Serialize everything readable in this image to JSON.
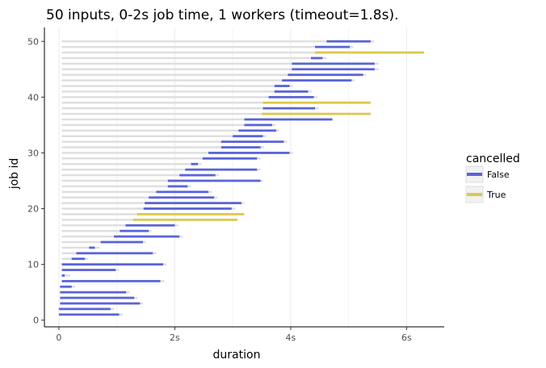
{
  "chart_data": {
    "type": "bar",
    "orientation": "horizontal-segments",
    "title": "50 inputs, 0-2s job time, 1 workers (timeout=1.8s).",
    "xlabel": "duration",
    "ylabel": "job id",
    "x_range": [
      -0.25,
      6.65
    ],
    "y_range": [
      -1.2,
      52.5
    ],
    "x_ticks": [
      0,
      2,
      4,
      6
    ],
    "x_tick_labels": [
      "0",
      "2s",
      "4s",
      "6s"
    ],
    "y_ticks": [
      0,
      10,
      20,
      30,
      40,
      50
    ],
    "y_tick_labels": [
      "0",
      "10",
      "20",
      "30",
      "40",
      "50"
    ],
    "grid": true,
    "legend": {
      "title": "cancelled",
      "placement": "right",
      "entries": [
        {
          "label": "False",
          "color": "#5a64d8"
        },
        {
          "label": "True",
          "color": "#dcc94a"
        }
      ]
    },
    "colors": {
      "false": "#5a64d8",
      "true": "#dcc94a",
      "background_segment": "#dedede",
      "grid": "#ebebeb"
    },
    "jobs": [
      {
        "id": 1,
        "start": 0.0,
        "end": 1.04,
        "submitted": 0.05,
        "queued_end": 1.1,
        "cancelled": false
      },
      {
        "id": 2,
        "start": 0.0,
        "end": 0.89,
        "submitted": 0.05,
        "queued_end": 0.95,
        "cancelled": false
      },
      {
        "id": 3,
        "start": 0.02,
        "end": 1.4,
        "submitted": 0.05,
        "queued_end": 1.45,
        "cancelled": false
      },
      {
        "id": 4,
        "start": 0.02,
        "end": 1.3,
        "submitted": 0.05,
        "queued_end": 1.36,
        "cancelled": false
      },
      {
        "id": 5,
        "start": 0.02,
        "end": 1.16,
        "submitted": 0.05,
        "queued_end": 1.22,
        "cancelled": false
      },
      {
        "id": 6,
        "start": 0.02,
        "end": 0.22,
        "submitted": 0.05,
        "queued_end": 0.28,
        "cancelled": false
      },
      {
        "id": 7,
        "start": 0.05,
        "end": 1.75,
        "submitted": 0.05,
        "queued_end": 1.82,
        "cancelled": false
      },
      {
        "id": 8,
        "start": 0.05,
        "end": 0.1,
        "submitted": 0.05,
        "queued_end": 0.2,
        "cancelled": false
      },
      {
        "id": 9,
        "start": 0.05,
        "end": 0.98,
        "submitted": 0.05,
        "queued_end": 1.04,
        "cancelled": false
      },
      {
        "id": 10,
        "start": 0.05,
        "end": 1.8,
        "submitted": 0.05,
        "queued_end": 1.86,
        "cancelled": false
      },
      {
        "id": 11,
        "start": 0.22,
        "end": 0.45,
        "submitted": 0.05,
        "queued_end": 0.5,
        "cancelled": false
      },
      {
        "id": 12,
        "start": 0.3,
        "end": 1.62,
        "submitted": 0.05,
        "queued_end": 1.68,
        "cancelled": false
      },
      {
        "id": 13,
        "start": 0.52,
        "end": 0.62,
        "submitted": 0.05,
        "queued_end": 0.7,
        "cancelled": false
      },
      {
        "id": 14,
        "start": 0.72,
        "end": 1.45,
        "submitted": 0.05,
        "queued_end": 1.5,
        "cancelled": false
      },
      {
        "id": 15,
        "start": 0.95,
        "end": 2.08,
        "submitted": 0.05,
        "queued_end": 2.14,
        "cancelled": false
      },
      {
        "id": 16,
        "start": 1.05,
        "end": 1.55,
        "submitted": 0.05,
        "queued_end": 1.6,
        "cancelled": false
      },
      {
        "id": 17,
        "start": 1.15,
        "end": 2.0,
        "submitted": 0.05,
        "queued_end": 2.06,
        "cancelled": false
      },
      {
        "id": 18,
        "start": 1.28,
        "end": 3.08,
        "submitted": 0.05,
        "queued_end": 3.08,
        "cancelled": true
      },
      {
        "id": 19,
        "start": 1.35,
        "end": 3.2,
        "submitted": 0.05,
        "queued_end": 3.2,
        "cancelled": true
      },
      {
        "id": 20,
        "start": 1.46,
        "end": 2.98,
        "submitted": 0.05,
        "queued_end": 3.04,
        "cancelled": false
      },
      {
        "id": 21,
        "start": 1.48,
        "end": 3.15,
        "submitted": 0.05,
        "queued_end": 3.2,
        "cancelled": false
      },
      {
        "id": 22,
        "start": 1.55,
        "end": 2.68,
        "submitted": 0.05,
        "queued_end": 2.74,
        "cancelled": false
      },
      {
        "id": 23,
        "start": 1.68,
        "end": 2.58,
        "submitted": 0.05,
        "queued_end": 2.64,
        "cancelled": false
      },
      {
        "id": 24,
        "start": 1.88,
        "end": 2.22,
        "submitted": 0.05,
        "queued_end": 2.28,
        "cancelled": false
      },
      {
        "id": 25,
        "start": 1.88,
        "end": 3.48,
        "submitted": 0.05,
        "queued_end": 3.52,
        "cancelled": false
      },
      {
        "id": 26,
        "start": 2.08,
        "end": 2.7,
        "submitted": 0.05,
        "queued_end": 2.76,
        "cancelled": false
      },
      {
        "id": 27,
        "start": 2.18,
        "end": 3.42,
        "submitted": 0.05,
        "queued_end": 3.48,
        "cancelled": false
      },
      {
        "id": 28,
        "start": 2.28,
        "end": 2.4,
        "submitted": 0.05,
        "queued_end": 2.46,
        "cancelled": false
      },
      {
        "id": 29,
        "start": 2.48,
        "end": 3.42,
        "submitted": 0.05,
        "queued_end": 3.48,
        "cancelled": false
      },
      {
        "id": 30,
        "start": 2.58,
        "end": 3.98,
        "submitted": 0.05,
        "queued_end": 4.04,
        "cancelled": false
      },
      {
        "id": 31,
        "start": 2.8,
        "end": 3.48,
        "submitted": 0.05,
        "queued_end": 3.54,
        "cancelled": false
      },
      {
        "id": 32,
        "start": 2.8,
        "end": 3.88,
        "submitted": 0.05,
        "queued_end": 3.94,
        "cancelled": false
      },
      {
        "id": 33,
        "start": 3.0,
        "end": 3.52,
        "submitted": 0.05,
        "queued_end": 3.58,
        "cancelled": false
      },
      {
        "id": 34,
        "start": 3.1,
        "end": 3.75,
        "submitted": 0.05,
        "queued_end": 3.8,
        "cancelled": false
      },
      {
        "id": 35,
        "start": 3.2,
        "end": 3.68,
        "submitted": 0.05,
        "queued_end": 3.74,
        "cancelled": false
      },
      {
        "id": 36,
        "start": 3.2,
        "end": 4.72,
        "submitted": 0.05,
        "queued_end": 4.72,
        "cancelled": false
      },
      {
        "id": 37,
        "start": 3.5,
        "end": 5.38,
        "submitted": 0.05,
        "queued_end": 5.38,
        "cancelled": true
      },
      {
        "id": 38,
        "start": 3.52,
        "end": 4.42,
        "submitted": 0.05,
        "queued_end": 4.48,
        "cancelled": false
      },
      {
        "id": 39,
        "start": 3.52,
        "end": 5.38,
        "submitted": 0.05,
        "queued_end": 5.38,
        "cancelled": true
      },
      {
        "id": 40,
        "start": 3.62,
        "end": 4.4,
        "submitted": 0.05,
        "queued_end": 4.46,
        "cancelled": false
      },
      {
        "id": 41,
        "start": 3.72,
        "end": 4.3,
        "submitted": 0.05,
        "queued_end": 4.36,
        "cancelled": false
      },
      {
        "id": 42,
        "start": 3.72,
        "end": 3.98,
        "submitted": 0.05,
        "queued_end": 4.04,
        "cancelled": false
      },
      {
        "id": 43,
        "start": 3.85,
        "end": 5.05,
        "submitted": 0.05,
        "queued_end": 5.1,
        "cancelled": false
      },
      {
        "id": 44,
        "start": 3.95,
        "end": 5.25,
        "submitted": 0.05,
        "queued_end": 5.3,
        "cancelled": false
      },
      {
        "id": 45,
        "start": 4.02,
        "end": 5.45,
        "submitted": 0.05,
        "queued_end": 5.52,
        "cancelled": false
      },
      {
        "id": 46,
        "start": 4.02,
        "end": 5.45,
        "submitted": 0.05,
        "queued_end": 5.52,
        "cancelled": false
      },
      {
        "id": 47,
        "start": 4.35,
        "end": 4.55,
        "submitted": 0.05,
        "queued_end": 4.62,
        "cancelled": false
      },
      {
        "id": 48,
        "start": 4.42,
        "end": 6.3,
        "submitted": 0.05,
        "queued_end": 6.3,
        "cancelled": true
      },
      {
        "id": 49,
        "start": 4.42,
        "end": 5.02,
        "submitted": 0.05,
        "queued_end": 5.08,
        "cancelled": false
      },
      {
        "id": 50,
        "start": 4.62,
        "end": 5.38,
        "submitted": 0.05,
        "queued_end": 5.44,
        "cancelled": false
      }
    ]
  }
}
